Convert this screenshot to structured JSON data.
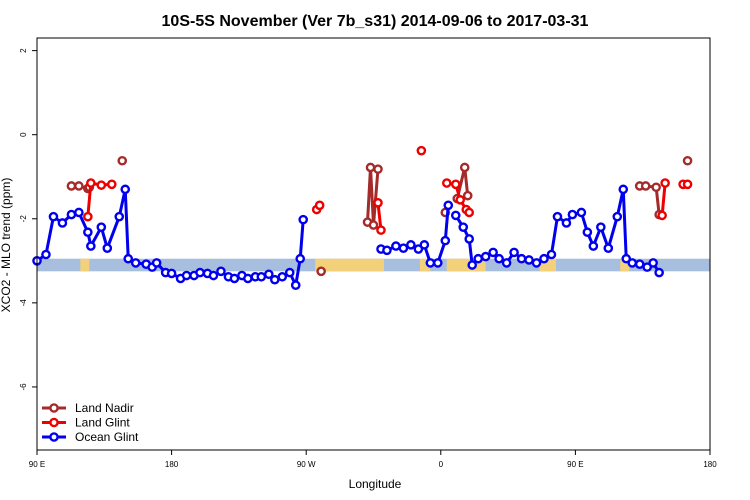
{
  "chart_data": {
    "type": "line",
    "title": "10S-5S November (Ver 7b_s31)   2014-09-06 to 2017-03-31",
    "xlabel": "Longitude",
    "ylabel": "XCO2 - MLO trend (ppm)",
    "xlim": [
      90,
      540
    ],
    "ylim": [
      -7.5,
      2.3
    ],
    "x_ticks": [
      {
        "value": 90,
        "label": "90 E"
      },
      {
        "value": 180,
        "label": "180"
      },
      {
        "value": 270,
        "label": "90 W"
      },
      {
        "value": 360,
        "label": "0"
      },
      {
        "value": 450,
        "label": "90 E"
      },
      {
        "value": 540,
        "label": "180"
      }
    ],
    "y_ticks": [
      {
        "value": 2,
        "label": "2"
      },
      {
        "value": 0,
        "label": "0"
      },
      {
        "value": -2,
        "label": "-2"
      },
      {
        "value": -4,
        "label": "-4"
      },
      {
        "value": -6,
        "label": "-6"
      }
    ],
    "grid": false,
    "legend_position": "bottom-left",
    "background_band": {
      "y_range": [
        -3.25,
        -2.95
      ],
      "ocean_color": "#a8bedf",
      "land_color": "#f3d17a",
      "land_x_ranges": [
        [
          119,
          125
        ],
        [
          276,
          322
        ],
        [
          346,
          353
        ],
        [
          364,
          390
        ],
        [
          426,
          437
        ],
        [
          480,
          486
        ]
      ]
    },
    "series": [
      {
        "name": "Land Nadir",
        "color": "#a52a2a",
        "segments": [
          [
            [
              113,
              -1.22
            ],
            [
              118,
              -1.22
            ],
            [
              124,
              -1.28
            ],
            [
              125,
              -1.25
            ]
          ],
          [
            [
              147,
              -0.62
            ]
          ],
          [
            [
              280,
              -3.25
            ]
          ],
          [
            [
              311,
              -2.08
            ],
            [
              313,
              -0.78
            ],
            [
              315,
              -2.15
            ],
            [
              318,
              -0.82
            ]
          ],
          [
            [
              363,
              -1.85
            ]
          ],
          [
            [
              371,
              -1.52
            ],
            [
              376,
              -0.78
            ],
            [
              378,
              -1.45
            ]
          ],
          [
            [
              493,
              -1.22
            ],
            [
              497,
              -1.22
            ],
            [
              504,
              -1.25
            ],
            [
              506,
              -1.9
            ]
          ],
          [
            [
              525,
              -0.62
            ]
          ]
        ]
      },
      {
        "name": "Land Glint",
        "color": "#ee0000",
        "segments": [
          [
            [
              124,
              -1.95
            ],
            [
              126,
              -1.15
            ],
            [
              133,
              -1.2
            ],
            [
              140,
              -1.18
            ]
          ],
          [
            [
              277,
              -1.78
            ],
            [
              279,
              -1.68
            ]
          ],
          [
            [
              318,
              -1.62
            ],
            [
              320,
              -2.27
            ]
          ],
          [
            [
              347,
              -0.38
            ]
          ],
          [
            [
              364,
              -1.15
            ]
          ],
          [
            [
              370,
              -1.18
            ],
            [
              373,
              -1.55
            ],
            [
              377,
              -1.78
            ],
            [
              379,
              -1.85
            ]
          ],
          [
            [
              508,
              -1.92
            ],
            [
              510,
              -1.15
            ]
          ],
          [
            [
              522,
              -1.18
            ],
            [
              525,
              -1.18
            ]
          ]
        ]
      },
      {
        "name": "Ocean Glint",
        "color": "#0000ee",
        "segments": [
          [
            [
              90,
              -3.0
            ],
            [
              96,
              -2.85
            ],
            [
              101,
              -1.95
            ],
            [
              107,
              -2.1
            ],
            [
              113,
              -1.9
            ],
            [
              118,
              -1.85
            ],
            [
              124,
              -2.32
            ],
            [
              126,
              -2.65
            ],
            [
              133,
              -2.2
            ],
            [
              137,
              -2.7
            ],
            [
              145,
              -1.95
            ],
            [
              149,
              -1.3
            ],
            [
              151,
              -2.95
            ],
            [
              156,
              -3.05
            ],
            [
              163,
              -3.08
            ],
            [
              167,
              -3.15
            ],
            [
              170,
              -3.05
            ],
            [
              176,
              -3.28
            ],
            [
              180,
              -3.3
            ],
            [
              186,
              -3.42
            ],
            [
              190,
              -3.35
            ],
            [
              195,
              -3.35
            ],
            [
              199,
              -3.28
            ],
            [
              204,
              -3.3
            ],
            [
              208,
              -3.35
            ],
            [
              213,
              -3.25
            ],
            [
              218,
              -3.38
            ],
            [
              222,
              -3.42
            ],
            [
              227,
              -3.35
            ],
            [
              231,
              -3.42
            ],
            [
              236,
              -3.38
            ],
            [
              240,
              -3.38
            ],
            [
              245,
              -3.32
            ],
            [
              249,
              -3.45
            ],
            [
              254,
              -3.38
            ],
            [
              259,
              -3.28
            ],
            [
              263,
              -3.58
            ],
            [
              266,
              -2.95
            ],
            [
              268,
              -2.02
            ]
          ],
          [
            [
              320,
              -2.72
            ],
            [
              324,
              -2.75
            ],
            [
              330,
              -2.65
            ],
            [
              335,
              -2.7
            ],
            [
              340,
              -2.62
            ],
            [
              345,
              -2.72
            ],
            [
              349,
              -2.62
            ],
            [
              353,
              -3.05
            ],
            [
              358,
              -3.05
            ],
            [
              363,
              -2.52
            ],
            [
              365,
              -1.68
            ]
          ],
          [
            [
              370,
              -1.92
            ],
            [
              375,
              -2.2
            ],
            [
              379,
              -2.48
            ],
            [
              381,
              -3.1
            ],
            [
              385,
              -2.95
            ],
            [
              390,
              -2.9
            ],
            [
              395,
              -2.8
            ],
            [
              399,
              -2.95
            ],
            [
              404,
              -3.05
            ],
            [
              409,
              -2.8
            ],
            [
              414,
              -2.95
            ],
            [
              419,
              -2.98
            ],
            [
              424,
              -3.05
            ],
            [
              429,
              -2.95
            ],
            [
              434,
              -2.85
            ],
            [
              438,
              -1.95
            ],
            [
              444,
              -2.1
            ],
            [
              448,
              -1.9
            ],
            [
              454,
              -1.85
            ],
            [
              458,
              -2.32
            ],
            [
              462,
              -2.65
            ],
            [
              467,
              -2.2
            ],
            [
              472,
              -2.7
            ],
            [
              478,
              -1.95
            ],
            [
              482,
              -1.3
            ],
            [
              484,
              -2.95
            ],
            [
              488,
              -3.05
            ],
            [
              493,
              -3.08
            ],
            [
              498,
              -3.15
            ],
            [
              502,
              -3.05
            ],
            [
              506,
              -3.28
            ]
          ]
        ]
      }
    ]
  }
}
